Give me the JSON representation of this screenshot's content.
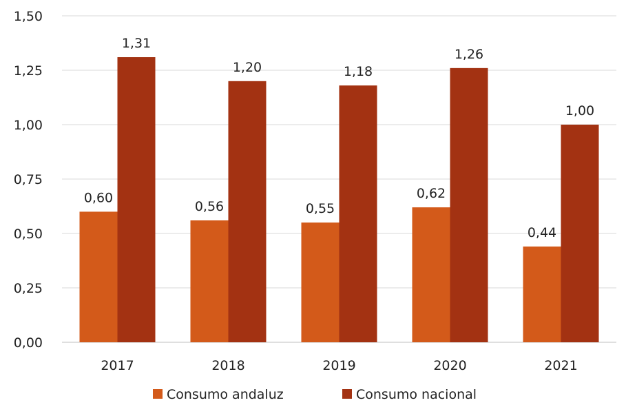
{
  "chart_data": {
    "type": "bar",
    "categories": [
      "2017",
      "2018",
      "2019",
      "2020",
      "2021"
    ],
    "series": [
      {
        "name": "Consumo andaluz",
        "color": "#d35a1a",
        "values": [
          0.6,
          0.56,
          0.55,
          0.62,
          0.44
        ],
        "labels": [
          "0,60",
          "0,56",
          "0,55",
          "0,62",
          "0,44"
        ]
      },
      {
        "name": "Consumo nacional",
        "color": "#a33212",
        "values": [
          1.31,
          1.2,
          1.18,
          1.26,
          1.0
        ],
        "labels": [
          "1,31",
          "1,20",
          "1,18",
          "1,26",
          "1,00"
        ]
      }
    ],
    "ylim": [
      0,
      1.5
    ],
    "yticks": [
      0,
      0.25,
      0.5,
      0.75,
      1.0,
      1.25,
      1.5
    ],
    "ytick_labels": [
      "0,00",
      "0,25",
      "0,50",
      "0,75",
      "1,00",
      "1,25",
      "1,50"
    ],
    "grid": true,
    "legend_position": "bottom"
  }
}
